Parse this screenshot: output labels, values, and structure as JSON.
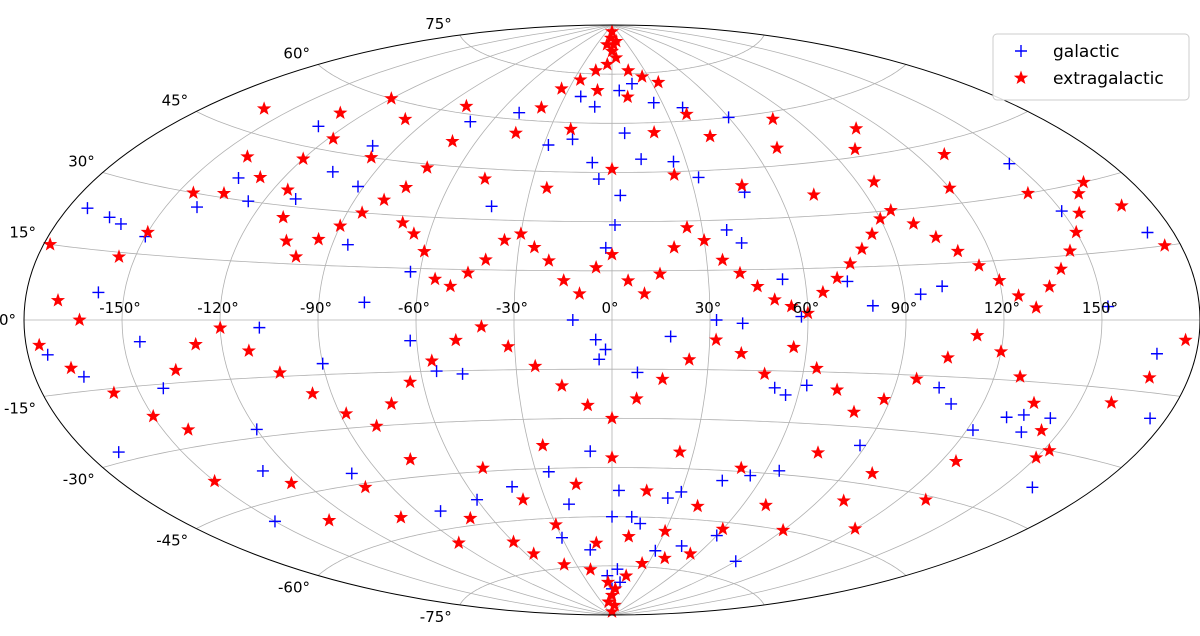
{
  "chart_data": {
    "type": "scatter",
    "projection": "aitoff",
    "grid": true,
    "legend_position": "top-right",
    "x_ticks": [
      "-150°",
      "-120°",
      "-90°",
      "-60°",
      "-30°",
      "0°",
      "30°",
      "60°",
      "90°",
      "120°",
      "150°"
    ],
    "y_ticks": [
      "-75°",
      "-60°",
      "-45°",
      "-30°",
      "-15°",
      "0°",
      "15°",
      "30°",
      "45°",
      "60°",
      "75°"
    ],
    "xlim": [
      -180,
      180
    ],
    "ylim": [
      -90,
      90
    ],
    "series": [
      {
        "name": "galactic",
        "marker": "plus",
        "color": "#0000ff",
        "points": [
          [
            -174,
            23
          ],
          [
            -165,
            22
          ],
          [
            -160,
            21
          ],
          [
            -158,
            6
          ],
          [
            -150,
            19
          ],
          [
            -140,
            27
          ],
          [
            -135,
            35
          ],
          [
            -125,
            30
          ],
          [
            -110,
            32
          ],
          [
            -105,
            40
          ],
          [
            -92,
            37
          ],
          [
            -85,
            21
          ],
          [
            -76,
            5
          ],
          [
            -63,
            14
          ],
          [
            -42,
            34
          ],
          [
            -28,
            53
          ],
          [
            -18,
            55
          ],
          [
            -8,
            48
          ],
          [
            -5,
            43
          ],
          [
            -2,
            22
          ],
          [
            1,
            29
          ],
          [
            3,
            38
          ],
          [
            6,
            57
          ],
          [
            12,
            49
          ],
          [
            25,
            48
          ],
          [
            33,
            43
          ],
          [
            38,
            27
          ],
          [
            42,
            23
          ],
          [
            48,
            38
          ],
          [
            53,
            12
          ],
          [
            58,
            1
          ],
          [
            73,
            11
          ],
          [
            80,
            4
          ],
          [
            95,
            7
          ],
          [
            102,
            9
          ],
          [
            148,
            37
          ],
          [
            150,
            25
          ],
          [
            152,
            3
          ],
          [
            -145,
            -5
          ],
          [
            -142,
            -16
          ],
          [
            -120,
            -28
          ],
          [
            -108,
            -2
          ],
          [
            -90,
            -12
          ],
          [
            -62,
            -6
          ],
          [
            -55,
            -15
          ],
          [
            -47,
            -16
          ],
          [
            -12,
            0
          ],
          [
            -5,
            -6
          ],
          [
            -2,
            -9
          ],
          [
            -4,
            -12
          ],
          [
            8,
            -16
          ],
          [
            18,
            -5
          ],
          [
            32,
            0
          ],
          [
            40,
            -1
          ],
          [
            52,
            -20
          ],
          [
            56,
            -22
          ],
          [
            62,
            -19
          ],
          [
            104,
            -18
          ],
          [
            110,
            -22
          ],
          [
            122,
            -28
          ],
          [
            130,
            -24
          ],
          [
            135,
            -23
          ],
          [
            138,
            -27
          ],
          [
            144,
            -23
          ],
          [
            160,
            -38
          ],
          [
            168,
            -7
          ],
          [
            -174,
            -7
          ],
          [
            -165,
            -12
          ],
          [
            -170,
            -28
          ],
          [
            -150,
            -49
          ],
          [
            -130,
            -38
          ],
          [
            -100,
            -42
          ],
          [
            -80,
            -55
          ],
          [
            -60,
            -53
          ],
          [
            -42,
            -50
          ],
          [
            -25,
            -46
          ],
          [
            -20,
            -56
          ],
          [
            -8,
            -40
          ],
          [
            0,
            -60
          ],
          [
            3,
            -52
          ],
          [
            10,
            -60
          ],
          [
            15,
            -62
          ],
          [
            25,
            -54
          ],
          [
            30,
            -52
          ],
          [
            45,
            -48
          ],
          [
            55,
            -46
          ],
          [
            65,
            -44
          ],
          [
            88,
            -35
          ],
          [
            -30,
            -66
          ],
          [
            -15,
            -70
          ],
          [
            -5,
            -78
          ],
          [
            0,
            -82
          ],
          [
            5,
            -76
          ],
          [
            10,
            -80
          ],
          [
            30,
            -70
          ],
          [
            45,
            -68
          ],
          [
            60,
            -64
          ],
          [
            90,
            -70
          ],
          [
            -10,
            65
          ],
          [
            -20,
            68
          ],
          [
            5,
            70
          ],
          [
            15,
            72
          ],
          [
            25,
            66
          ],
          [
            40,
            64
          ],
          [
            60,
            60
          ],
          [
            -50,
            62
          ],
          [
            -70,
            58
          ],
          [
            -100,
            48
          ],
          [
            -130,
            50
          ],
          [
            175,
            -20
          ],
          [
            172,
            18
          ]
        ]
      },
      {
        "name": "extragalactic",
        "marker": "star",
        "color": "#ff0000",
        "points": [
          [
            -178,
            15
          ],
          [
            -170,
            4
          ],
          [
            -163,
            0
          ],
          [
            -155,
            14
          ],
          [
            -150,
            20
          ],
          [
            -145,
            30
          ],
          [
            -135,
            31
          ],
          [
            -128,
            36
          ],
          [
            -120,
            42
          ],
          [
            -115,
            34
          ],
          [
            -110,
            27
          ],
          [
            -105,
            21
          ],
          [
            -100,
            17
          ],
          [
            -95,
            22
          ],
          [
            -90,
            26
          ],
          [
            -85,
            30
          ],
          [
            -80,
            34
          ],
          [
            -75,
            38
          ],
          [
            -70,
            28
          ],
          [
            -65,
            25
          ],
          [
            -60,
            20
          ],
          [
            -55,
            12
          ],
          [
            -50,
            10
          ],
          [
            -45,
            14
          ],
          [
            -40,
            18
          ],
          [
            -35,
            24
          ],
          [
            -30,
            26
          ],
          [
            -25,
            22
          ],
          [
            -20,
            18
          ],
          [
            -15,
            12
          ],
          [
            -10,
            8
          ],
          [
            -5,
            16
          ],
          [
            0,
            20
          ],
          [
            5,
            12
          ],
          [
            10,
            8
          ],
          [
            15,
            14
          ],
          [
            20,
            22
          ],
          [
            25,
            28
          ],
          [
            30,
            24
          ],
          [
            35,
            18
          ],
          [
            40,
            14
          ],
          [
            45,
            10
          ],
          [
            50,
            6
          ],
          [
            55,
            4
          ],
          [
            60,
            2
          ],
          [
            65,
            8
          ],
          [
            70,
            12
          ],
          [
            75,
            16
          ],
          [
            80,
            20
          ],
          [
            85,
            24
          ],
          [
            90,
            28
          ],
          [
            95,
            30
          ],
          [
            100,
            26
          ],
          [
            105,
            22
          ],
          [
            110,
            18
          ],
          [
            115,
            14
          ],
          [
            120,
            10
          ],
          [
            125,
            6
          ],
          [
            130,
            3
          ],
          [
            135,
            8
          ],
          [
            140,
            12
          ],
          [
            145,
            16
          ],
          [
            150,
            20
          ],
          [
            155,
            24
          ],
          [
            160,
            28
          ],
          [
            165,
            30
          ],
          [
            170,
            24
          ],
          [
            175,
            15
          ],
          [
            -140,
            40
          ],
          [
            -118,
            48
          ],
          [
            -96,
            45
          ],
          [
            -72,
            44
          ],
          [
            -48,
            42
          ],
          [
            -24,
            40
          ],
          [
            0,
            46
          ],
          [
            24,
            44
          ],
          [
            48,
            40
          ],
          [
            72,
            36
          ],
          [
            96,
            38
          ],
          [
            120,
            34
          ],
          [
            144,
            30
          ],
          [
            -160,
            50
          ],
          [
            -130,
            54
          ],
          [
            -100,
            56
          ],
          [
            -70,
            52
          ],
          [
            -45,
            56
          ],
          [
            -20,
            58
          ],
          [
            20,
            57
          ],
          [
            45,
            55
          ],
          [
            70,
            50
          ],
          [
            100,
            47
          ],
          [
            130,
            42
          ],
          [
            -120,
            60
          ],
          [
            -80,
            62
          ],
          [
            -40,
            64
          ],
          [
            -10,
            70
          ],
          [
            10,
            68
          ],
          [
            40,
            62
          ],
          [
            80,
            58
          ],
          [
            110,
            52
          ],
          [
            -5,
            78
          ],
          [
            0,
            82
          ],
          [
            5,
            80
          ],
          [
            -10,
            84
          ],
          [
            10,
            85
          ],
          [
            0,
            88
          ],
          [
            -3,
            86
          ],
          [
            3,
            84
          ],
          [
            15,
            76
          ],
          [
            -15,
            76
          ],
          [
            25,
            74
          ],
          [
            -25,
            73
          ],
          [
            35,
            72
          ],
          [
            -35,
            70
          ],
          [
            -176,
            -5
          ],
          [
            -168,
            -10
          ],
          [
            -158,
            -16
          ],
          [
            -150,
            -22
          ],
          [
            -142,
            -26
          ],
          [
            -136,
            -12
          ],
          [
            -128,
            -6
          ],
          [
            -120,
            -2
          ],
          [
            -112,
            -8
          ],
          [
            -104,
            -14
          ],
          [
            -96,
            -20
          ],
          [
            -88,
            -26
          ],
          [
            -80,
            -30
          ],
          [
            -72,
            -24
          ],
          [
            -64,
            -18
          ],
          [
            -56,
            -12
          ],
          [
            -48,
            -6
          ],
          [
            -40,
            -2
          ],
          [
            -32,
            -8
          ],
          [
            -24,
            -14
          ],
          [
            -16,
            -20
          ],
          [
            -8,
            -26
          ],
          [
            0,
            -30
          ],
          [
            8,
            -24
          ],
          [
            16,
            -18
          ],
          [
            24,
            -12
          ],
          [
            32,
            -6
          ],
          [
            40,
            -10
          ],
          [
            48,
            -16
          ],
          [
            56,
            -8
          ],
          [
            64,
            -14
          ],
          [
            72,
            -20
          ],
          [
            80,
            -26
          ],
          [
            88,
            -22
          ],
          [
            96,
            -16
          ],
          [
            104,
            -10
          ],
          [
            112,
            -4
          ],
          [
            120,
            -8
          ],
          [
            128,
            -14
          ],
          [
            136,
            -20
          ],
          [
            144,
            -26
          ],
          [
            152,
            -30
          ],
          [
            160,
            -18
          ],
          [
            168,
            -12
          ],
          [
            176,
            -4
          ],
          [
            -150,
            -38
          ],
          [
            -125,
            -42
          ],
          [
            -100,
            -46
          ],
          [
            -75,
            -40
          ],
          [
            -50,
            -44
          ],
          [
            -25,
            -38
          ],
          [
            0,
            -42
          ],
          [
            25,
            -40
          ],
          [
            50,
            -44
          ],
          [
            75,
            -38
          ],
          [
            100,
            -42
          ],
          [
            125,
            -36
          ],
          [
            150,
            -32
          ],
          [
            -130,
            -52
          ],
          [
            -100,
            -55
          ],
          [
            -70,
            -58
          ],
          [
            -40,
            -54
          ],
          [
            -15,
            -50
          ],
          [
            15,
            -52
          ],
          [
            40,
            -56
          ],
          [
            70,
            -54
          ],
          [
            100,
            -50
          ],
          [
            130,
            -46
          ],
          [
            -90,
            -64
          ],
          [
            -60,
            -66
          ],
          [
            -30,
            -62
          ],
          [
            -10,
            -68
          ],
          [
            10,
            -66
          ],
          [
            30,
            -64
          ],
          [
            60,
            -62
          ],
          [
            90,
            -60
          ],
          [
            120,
            -56
          ],
          [
            -40,
            -74
          ],
          [
            -20,
            -76
          ],
          [
            -5,
            -80
          ],
          [
            0,
            -84
          ],
          [
            5,
            -82
          ],
          [
            15,
            -78
          ],
          [
            -10,
            -86
          ],
          [
            10,
            -87
          ],
          [
            0,
            -89
          ],
          [
            25,
            -74
          ],
          [
            40,
            -72
          ],
          [
            -55,
            -70
          ],
          [
            55,
            -70
          ]
        ]
      }
    ]
  }
}
